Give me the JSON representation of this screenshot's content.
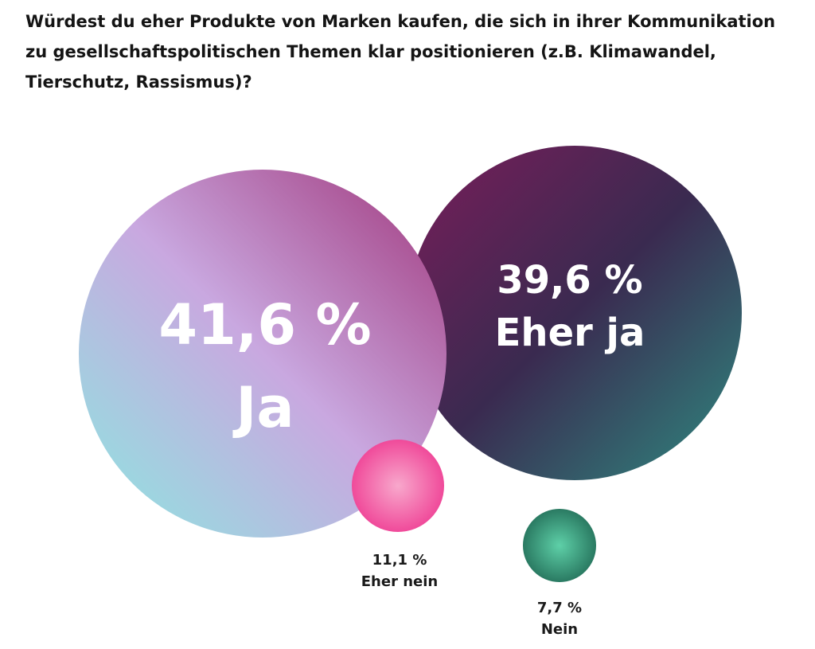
{
  "chart_data": {
    "type": "bubble",
    "title": "Würdest du eher Produkte von Marken kaufen, die sich in ihrer Kommunikation zu gesellschaftspolitischen Themen klar positionieren (z.B. Klimawandel, Tierschutz, Rassismus)?",
    "unit": "%",
    "items": [
      {
        "label": "Ja",
        "value": 41.6,
        "value_text": "41,6 %",
        "colors": [
          "#8be8e0",
          "#c9a8e0",
          "#a0357a"
        ]
      },
      {
        "label": "Eher ja",
        "value": 39.6,
        "value_text": "39,6 %",
        "colors": [
          "#7a1d5a",
          "#3a2a50",
          "#2f8a80"
        ]
      },
      {
        "label": "Eher nein",
        "value": 11.1,
        "value_text": "11,1 %",
        "colors": [
          "#f04a9a",
          "#f8a8cc"
        ]
      },
      {
        "label": "Nein",
        "value": 7.7,
        "value_text": "7,7 %",
        "colors": [
          "#2a7a62",
          "#5ed0a8"
        ]
      }
    ]
  }
}
